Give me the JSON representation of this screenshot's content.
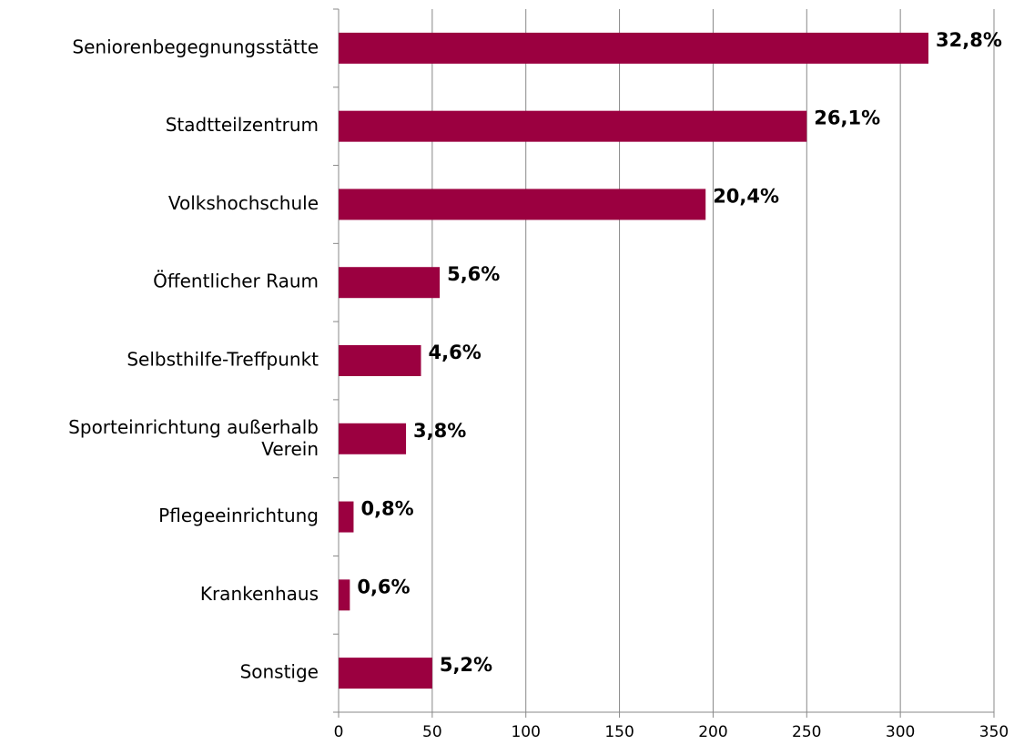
{
  "chart_data": {
    "type": "barh",
    "categories": [
      "Seniorenbegegnungsstätte",
      "Stadtteilzentrum",
      "Volkshochschule",
      "Öffentlicher Raum",
      "Selbsthilfe-Treffpunkt",
      "Sporteinrichtung außerhalb\nVerein",
      "Pflegeeinrichtung",
      "Krankenhaus",
      "Sonstige"
    ],
    "values": [
      315,
      250,
      196,
      54,
      44,
      36,
      8,
      6,
      50
    ],
    "percent_labels": [
      "32,8%",
      "26,1%",
      "20,4%",
      "5,6%",
      "4,6%",
      "3,8%",
      "0,8%",
      "0,6%",
      "5,2%"
    ],
    "color": "#9b0040",
    "xlim": [
      0,
      350
    ],
    "xticks": [
      0,
      50,
      100,
      150,
      200,
      250,
      300,
      350
    ],
    "grid": true
  }
}
